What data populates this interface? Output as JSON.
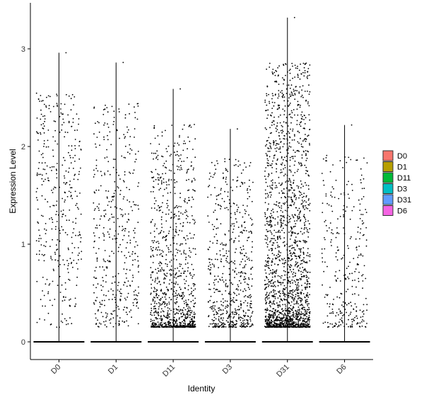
{
  "chart_data": {
    "type": "violin-jitter",
    "title": "",
    "xlabel": "Identity",
    "ylabel": "Expression Level",
    "ylim": [
      -0.18,
      3.45
    ],
    "yticks": [
      0,
      1,
      2,
      3
    ],
    "grid": false,
    "legend_position": "right",
    "point_color": "#000000",
    "categories": [
      "D0",
      "D1",
      "D11",
      "D3",
      "D31",
      "D6"
    ],
    "series": [
      {
        "name": "D0",
        "color": "#F8766D",
        "max": 2.96,
        "n_points": 380,
        "low_bias": 1.0
      },
      {
        "name": "D1",
        "color": "#B79F00",
        "max": 2.86,
        "n_points": 420,
        "low_bias": 1.3
      },
      {
        "name": "D11",
        "color": "#00BA38",
        "max": 2.59,
        "n_points": 1000,
        "low_bias": 2.6
      },
      {
        "name": "D3",
        "color": "#00BFC4",
        "max": 2.18,
        "n_points": 600,
        "low_bias": 2.0
      },
      {
        "name": "D31",
        "color": "#619CFF",
        "max": 3.32,
        "n_points": 1900,
        "low_bias": 2.3
      },
      {
        "name": "D6",
        "color": "#F564E3",
        "max": 2.22,
        "n_points": 300,
        "low_bias": 1.6
      }
    ],
    "legend": [
      {
        "label": "D0",
        "color": "#F8766D"
      },
      {
        "label": "D1",
        "color": "#B79F00"
      },
      {
        "label": "D11",
        "color": "#00BA38"
      },
      {
        "label": "D3",
        "color": "#00BFC4"
      },
      {
        "label": "D31",
        "color": "#619CFF"
      },
      {
        "label": "D6",
        "color": "#F564E3"
      }
    ]
  }
}
